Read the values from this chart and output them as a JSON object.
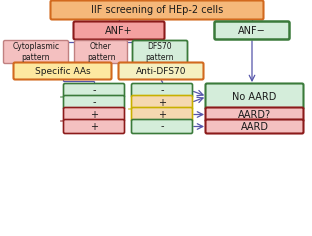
{
  "title": "IIF screening of HEp-2 cells",
  "title_bg": "#f5b87a",
  "title_border": "#d2691e",
  "anf_plus_text": "ANF+",
  "anf_plus_bg": "#f4a0a0",
  "anf_plus_border": "#8b1a1a",
  "anf_minus_text": "ANF−",
  "anf_minus_bg": "#d4edda",
  "anf_minus_border": "#3a7a3a",
  "cyto_text": "Cytoplasmic\npattern",
  "cyto_bg": "#f4c0c0",
  "cyto_border": "#c08080",
  "other_text": "Other\npattern",
  "other_bg": "#f4c0c0",
  "other_border": "#c08080",
  "dfs70_text": "DFS70\npattern",
  "dfs70_bg": "#d4edda",
  "dfs70_border": "#3a7a3a",
  "spec_aa_text": "Specific AAs",
  "spec_aa_bg": "#fde8a0",
  "spec_aa_border": "#d2691e",
  "anti_dfs70_text": "Anti-DFS70",
  "anti_dfs70_bg": "#f5f0c0",
  "anti_dfs70_border": "#d2691e",
  "no_aard_text": "No AARD",
  "no_aard_bg": "#d4edda",
  "no_aard_border": "#3a7a3a",
  "aard_q_text": "AARD?",
  "aard_q_bg": "#f4c0c0",
  "aard_q_border": "#8b1a1a",
  "aard_text": "AARD",
  "aard_bg": "#f4c0c0",
  "aard_border": "#8b1a1a",
  "row_labels": [
    [
      "-",
      "-"
    ],
    [
      "-",
      "+"
    ],
    [
      "+",
      "+"
    ],
    [
      "+",
      "-"
    ]
  ],
  "row_left_bg": [
    "#d4edda",
    "#d4edda",
    "#f4c0c0",
    "#f4c0c0"
  ],
  "row_left_border_left": [
    "#3a7a3a",
    "#3a7a3a",
    "#8b1a1a",
    "#8b1a1a"
  ],
  "row_right_bg": [
    "#d4edda",
    "#f5d8b0",
    "#f5d8b0",
    "#d4edda"
  ],
  "row_right_border_left": [
    "#3a7a3a",
    "#c8b000",
    "#c8b000",
    "#3a7a3a"
  ],
  "row_outcomes": [
    "No AARD",
    "No AARD",
    "AARD?",
    "AARD"
  ],
  "line_color": "#5555aa",
  "arrow_color": "#5555aa"
}
